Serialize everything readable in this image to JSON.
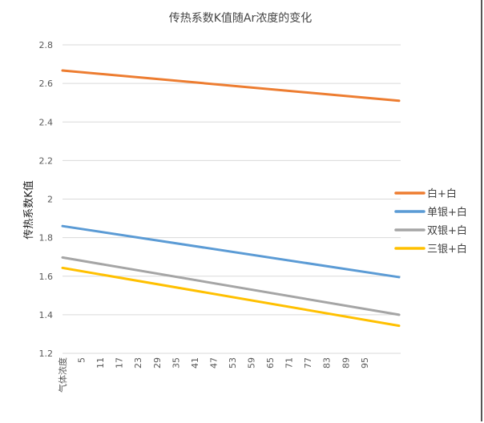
{
  "chart_data": {
    "type": "line",
    "title": "传热系数K值随Ar浓度的变化",
    "xlabel": "",
    "ylabel": "传热系数K值",
    "ylim": [
      1.2,
      2.8
    ],
    "yticks": [
      "1.2",
      "1.4",
      "1.6",
      "1.8",
      "2",
      "2.2",
      "2.4",
      "2.6",
      "2.8"
    ],
    "xlim": [
      0,
      107
    ],
    "xtick_labels": [
      "气体浓度",
      "5",
      "11",
      "17",
      "23",
      "29",
      "35",
      "41",
      "47",
      "53",
      "59",
      "65",
      "71",
      "77",
      "83",
      "89",
      "95"
    ],
    "x": [
      0,
      107
    ],
    "grid": true,
    "legend_position": "right",
    "series": [
      {
        "name": "白+白",
        "color": "#ED7D31",
        "values": [
          2.667,
          2.51
        ]
      },
      {
        "name": "单银+白",
        "color": "#5B9BD5",
        "values": [
          1.86,
          1.595
        ]
      },
      {
        "name": "双银+白",
        "color": "#A5A5A5",
        "values": [
          1.697,
          1.4
        ]
      },
      {
        "name": "三银+白",
        "color": "#FFC000",
        "values": [
          1.643,
          1.343
        ]
      }
    ]
  }
}
